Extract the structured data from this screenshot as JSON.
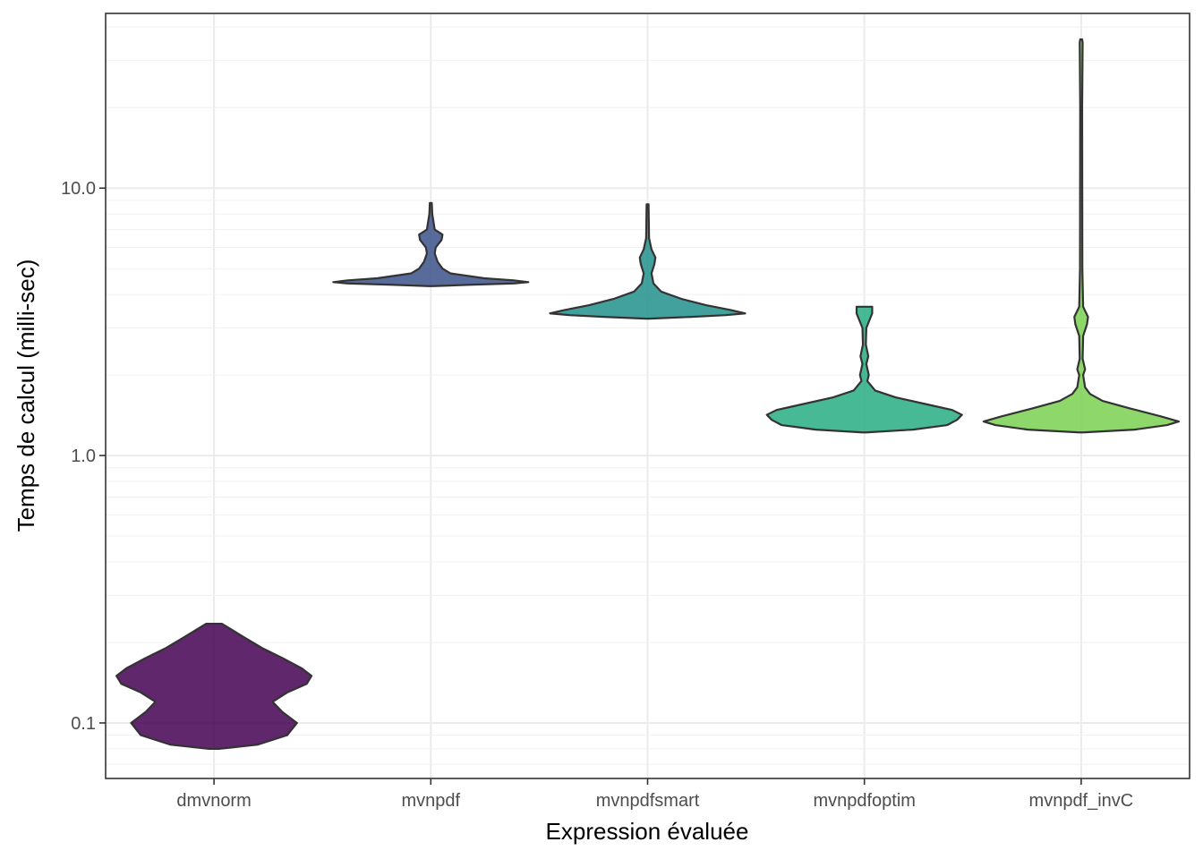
{
  "chart_data": {
    "type": "violin",
    "xlabel": "Expression évaluée",
    "ylabel": "Temps de calcul (milli-sec)",
    "y_scale": "log10",
    "ylim": [
      0.062,
      45
    ],
    "yticks": [
      0.1,
      1.0,
      10.0
    ],
    "ytick_labels": [
      "0.1",
      "1.0",
      "10.0"
    ],
    "grid": true,
    "categories": [
      "dmvnorm",
      "mvnpdf",
      "mvnpdfsmart",
      "mvnpdfoptim",
      "mvnpdf_invC"
    ],
    "series": [
      {
        "category": "dmvnorm",
        "color": "#440154",
        "density": [
          [
            0.08,
            0.05
          ],
          [
            0.083,
            0.45
          ],
          [
            0.09,
            0.75
          ],
          [
            0.1,
            0.85
          ],
          [
            0.11,
            0.7
          ],
          [
            0.12,
            0.6
          ],
          [
            0.13,
            0.75
          ],
          [
            0.14,
            0.95
          ],
          [
            0.15,
            1.0
          ],
          [
            0.16,
            0.9
          ],
          [
            0.175,
            0.7
          ],
          [
            0.19,
            0.5
          ],
          [
            0.21,
            0.3
          ],
          [
            0.235,
            0.08
          ]
        ]
      },
      {
        "category": "mvnpdf",
        "color": "#3b528b",
        "density": [
          [
            4.3,
            0.02
          ],
          [
            4.35,
            0.4
          ],
          [
            4.4,
            0.85
          ],
          [
            4.45,
            1.0
          ],
          [
            4.52,
            0.85
          ],
          [
            4.6,
            0.55
          ],
          [
            4.8,
            0.2
          ],
          [
            5.0,
            0.12
          ],
          [
            5.3,
            0.07
          ],
          [
            5.7,
            0.04
          ],
          [
            6.0,
            0.05
          ],
          [
            6.4,
            0.11
          ],
          [
            6.7,
            0.12
          ],
          [
            7.0,
            0.04
          ],
          [
            8.0,
            0.015
          ],
          [
            8.8,
            0.01
          ]
        ]
      },
      {
        "category": "mvnpdfsmart",
        "color": "#21918c",
        "density": [
          [
            3.25,
            0.02
          ],
          [
            3.3,
            0.45
          ],
          [
            3.35,
            0.8
          ],
          [
            3.4,
            1.0
          ],
          [
            3.5,
            0.85
          ],
          [
            3.65,
            0.6
          ],
          [
            3.85,
            0.35
          ],
          [
            4.1,
            0.14
          ],
          [
            4.4,
            0.06
          ],
          [
            4.8,
            0.04
          ],
          [
            5.2,
            0.07
          ],
          [
            5.5,
            0.08
          ],
          [
            5.9,
            0.04
          ],
          [
            6.5,
            0.015
          ],
          [
            8.7,
            0.01
          ]
        ]
      },
      {
        "category": "mvnpdfoptim",
        "color": "#27ad81",
        "density": [
          [
            1.22,
            0.02
          ],
          [
            1.25,
            0.5
          ],
          [
            1.3,
            0.85
          ],
          [
            1.36,
            0.95
          ],
          [
            1.42,
            1.0
          ],
          [
            1.48,
            0.9
          ],
          [
            1.56,
            0.62
          ],
          [
            1.65,
            0.32
          ],
          [
            1.75,
            0.11
          ],
          [
            1.9,
            0.03
          ],
          [
            2.0,
            0.045
          ],
          [
            2.2,
            0.02
          ],
          [
            2.35,
            0.04
          ],
          [
            2.6,
            0.015
          ],
          [
            3.0,
            0.02
          ],
          [
            3.4,
            0.08
          ],
          [
            3.6,
            0.08
          ]
        ]
      },
      {
        "category": "mvnpdf_invC",
        "color": "#7ad151",
        "density": [
          [
            1.22,
            0.02
          ],
          [
            1.25,
            0.55
          ],
          [
            1.3,
            0.88
          ],
          [
            1.34,
            1.0
          ],
          [
            1.4,
            0.82
          ],
          [
            1.5,
            0.5
          ],
          [
            1.6,
            0.22
          ],
          [
            1.7,
            0.09
          ],
          [
            1.8,
            0.04
          ],
          [
            2.0,
            0.02
          ],
          [
            2.1,
            0.04
          ],
          [
            2.3,
            0.015
          ],
          [
            2.8,
            0.02
          ],
          [
            3.1,
            0.06
          ],
          [
            3.3,
            0.07
          ],
          [
            3.6,
            0.02
          ],
          [
            5.0,
            0.012
          ],
          [
            20.0,
            0.01
          ],
          [
            35.0,
            0.015
          ],
          [
            36.0,
            0.01
          ]
        ]
      }
    ]
  }
}
